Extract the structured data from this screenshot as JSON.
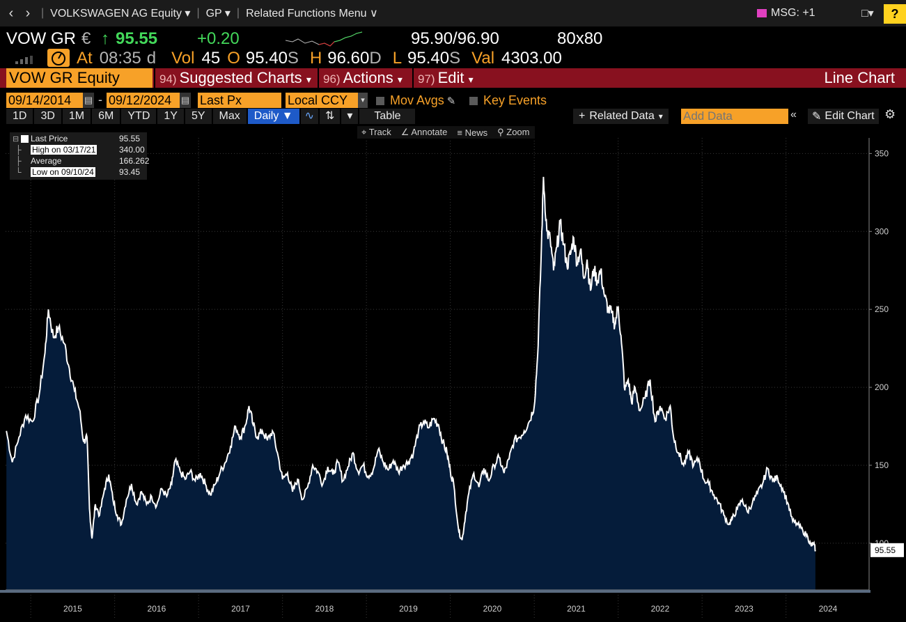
{
  "topbar": {
    "security": "VOLKSWAGEN AG Equity",
    "function": "GP",
    "related": "Related Functions Menu",
    "msg": "MSG: +1",
    "help": "?"
  },
  "quote": {
    "ticker": "VOW GR",
    "currency": "€",
    "arrow": "↑",
    "last": "95.55",
    "change": "+0.20",
    "bid_ask": "95.90/96.90",
    "size": "80x80",
    "at_label": "At",
    "time": "08:35",
    "time_suffix": "d",
    "vol_label": "Vol",
    "vol": "45",
    "open_label": "O",
    "open": "95.40",
    "open_suffix": "S",
    "high_label": "H",
    "high": "96.60",
    "high_suffix": "D",
    "low_label": "L",
    "low": "95.40",
    "low_suffix": "S",
    "val_label": "Val",
    "val": "4303.00"
  },
  "toolbar": {
    "equity": "VOW GR Equity",
    "suggested_num": "94)",
    "suggested": "Suggested Charts",
    "actions_num": "96)",
    "actions": "Actions",
    "edit_num": "97)",
    "edit": "Edit",
    "chart_type": "Line Chart"
  },
  "range": {
    "start": "09/14/2014",
    "dash": "-",
    "end": "09/12/2024",
    "field": "Last Px",
    "currency": "Local CCY",
    "mov_avgs": "Mov Avgs",
    "key_events": "Key Events"
  },
  "periods": [
    "1D",
    "3D",
    "1M",
    "6M",
    "YTD",
    "1Y",
    "5Y",
    "Max"
  ],
  "frequency": "Daily ▼",
  "table_label": "Table",
  "related_data": "Related Data",
  "add_data_placeholder": "Add Data",
  "edit_chart": "Edit Chart",
  "tools": {
    "track": "Track",
    "annotate": "Annotate",
    "news": "News",
    "zoom": "Zoom"
  },
  "legend": {
    "last_label": "Last Price",
    "last_value": "95.55",
    "high_label": "High on 03/17/21",
    "high_value": "340.00",
    "avg_label": "Average",
    "avg_value": "166.262",
    "low_label": "Low on 09/10/24",
    "low_value": "93.45"
  },
  "colors": {
    "area_fill": "#051c3a",
    "line": "#ffffff",
    "orange": "#f7a128",
    "green": "#43d85a",
    "red_bar": "#88111f"
  },
  "chart_data": {
    "type": "area",
    "x_unit": "year",
    "y_ticks": [
      100,
      150,
      200,
      250,
      300,
      350
    ],
    "x_ticks": [
      "2015",
      "2016",
      "2017",
      "2018",
      "2019",
      "2020",
      "2021",
      "2022",
      "2023",
      "2024"
    ],
    "ylim": [
      70,
      360
    ],
    "xlim": [
      2014.7,
      2024.99
    ],
    "last_value_label": "95.55",
    "series": [
      {
        "points": [
          [
            2014.71,
            172
          ],
          [
            2014.78,
            152
          ],
          [
            2014.86,
            168
          ],
          [
            2014.94,
            182
          ],
          [
            2015.02,
            178
          ],
          [
            2015.1,
            195
          ],
          [
            2015.17,
            222
          ],
          [
            2015.21,
            250
          ],
          [
            2015.27,
            232
          ],
          [
            2015.33,
            238
          ],
          [
            2015.4,
            228
          ],
          [
            2015.46,
            212
          ],
          [
            2015.52,
            198
          ],
          [
            2015.58,
            186
          ],
          [
            2015.63,
            165
          ],
          [
            2015.67,
            168
          ],
          [
            2015.7,
            122
          ],
          [
            2015.73,
            103
          ],
          [
            2015.77,
            125
          ],
          [
            2015.82,
            118
          ],
          [
            2015.88,
            135
          ],
          [
            2015.93,
            144
          ],
          [
            2015.98,
            128
          ],
          [
            2016.03,
            118
          ],
          [
            2016.08,
            112
          ],
          [
            2016.14,
            128
          ],
          [
            2016.2,
            138
          ],
          [
            2016.26,
            125
          ],
          [
            2016.32,
            133
          ],
          [
            2016.38,
            125
          ],
          [
            2016.44,
            130
          ],
          [
            2016.5,
            124
          ],
          [
            2016.56,
            135
          ],
          [
            2016.62,
            130
          ],
          [
            2016.68,
            138
          ],
          [
            2016.72,
            153
          ],
          [
            2016.78,
            146
          ],
          [
            2016.84,
            141
          ],
          [
            2016.9,
            146
          ],
          [
            2016.96,
            140
          ],
          [
            2017.02,
            145
          ],
          [
            2017.08,
            138
          ],
          [
            2017.14,
            131
          ],
          [
            2017.2,
            138
          ],
          [
            2017.26,
            146
          ],
          [
            2017.32,
            152
          ],
          [
            2017.38,
            162
          ],
          [
            2017.44,
            175
          ],
          [
            2017.5,
            168
          ],
          [
            2017.56,
            176
          ],
          [
            2017.6,
            188
          ],
          [
            2017.65,
            176
          ],
          [
            2017.7,
            168
          ],
          [
            2017.76,
            172
          ],
          [
            2017.82,
            166
          ],
          [
            2017.88,
            172
          ],
          [
            2017.94,
            158
          ],
          [
            2018.0,
            141
          ],
          [
            2018.06,
            145
          ],
          [
            2018.12,
            133
          ],
          [
            2018.18,
            141
          ],
          [
            2018.24,
            128
          ],
          [
            2018.3,
            136
          ],
          [
            2018.36,
            150
          ],
          [
            2018.42,
            146
          ],
          [
            2018.48,
            138
          ],
          [
            2018.54,
            149
          ],
          [
            2018.6,
            144
          ],
          [
            2018.66,
            152
          ],
          [
            2018.72,
            140
          ],
          [
            2018.78,
            149
          ],
          [
            2018.84,
            158
          ],
          [
            2018.9,
            146
          ],
          [
            2018.96,
            150
          ],
          [
            2019.02,
            143
          ],
          [
            2019.08,
            147
          ],
          [
            2019.14,
            160
          ],
          [
            2019.2,
            152
          ],
          [
            2019.26,
            147
          ],
          [
            2019.32,
            153
          ],
          [
            2019.38,
            146
          ],
          [
            2019.44,
            150
          ],
          [
            2019.5,
            152
          ],
          [
            2019.56,
            158
          ],
          [
            2019.62,
            172
          ],
          [
            2019.68,
            178
          ],
          [
            2019.74,
            174
          ],
          [
            2019.8,
            180
          ],
          [
            2019.86,
            176
          ],
          [
            2019.91,
            165
          ],
          [
            2019.96,
            158
          ],
          [
            2020.0,
            146
          ],
          [
            2020.04,
            138
          ],
          [
            2020.1,
            108
          ],
          [
            2020.14,
            102
          ],
          [
            2020.18,
            118
          ],
          [
            2020.22,
            132
          ],
          [
            2020.28,
            145
          ],
          [
            2020.34,
            136
          ],
          [
            2020.4,
            148
          ],
          [
            2020.46,
            140
          ],
          [
            2020.52,
            150
          ],
          [
            2020.58,
            155
          ],
          [
            2020.64,
            145
          ],
          [
            2020.7,
            154
          ],
          [
            2020.76,
            166
          ],
          [
            2020.82,
            168
          ],
          [
            2020.88,
            172
          ],
          [
            2020.94,
            178
          ],
          [
            2021.0,
            188
          ],
          [
            2021.04,
            220
          ],
          [
            2021.08,
            280
          ],
          [
            2021.11,
            335
          ],
          [
            2021.15,
            300
          ],
          [
            2021.19,
            295
          ],
          [
            2021.23,
            275
          ],
          [
            2021.27,
            290
          ],
          [
            2021.31,
            305
          ],
          [
            2021.35,
            292
          ],
          [
            2021.39,
            278
          ],
          [
            2021.43,
            285
          ],
          [
            2021.47,
            296
          ],
          [
            2021.51,
            280
          ],
          [
            2021.55,
            288
          ],
          [
            2021.59,
            270
          ],
          [
            2021.63,
            282
          ],
          [
            2021.67,
            262
          ],
          [
            2021.71,
            276
          ],
          [
            2021.75,
            268
          ],
          [
            2021.79,
            275
          ],
          [
            2021.84,
            258
          ],
          [
            2021.88,
            250
          ],
          [
            2021.92,
            248
          ],
          [
            2021.96,
            240
          ],
          [
            2022.0,
            252
          ],
          [
            2022.04,
            228
          ],
          [
            2022.08,
            198
          ],
          [
            2022.12,
            205
          ],
          [
            2022.16,
            190
          ],
          [
            2022.2,
            200
          ],
          [
            2022.26,
            185
          ],
          [
            2022.32,
            193
          ],
          [
            2022.38,
            205
          ],
          [
            2022.44,
            178
          ],
          [
            2022.5,
            188
          ],
          [
            2022.56,
            180
          ],
          [
            2022.62,
            188
          ],
          [
            2022.66,
            168
          ],
          [
            2022.72,
            158
          ],
          [
            2022.78,
            150
          ],
          [
            2022.84,
            158
          ],
          [
            2022.9,
            150
          ],
          [
            2022.96,
            154
          ],
          [
            2023.02,
            141
          ],
          [
            2023.08,
            138
          ],
          [
            2023.14,
            131
          ],
          [
            2023.2,
            126
          ],
          [
            2023.26,
            118
          ],
          [
            2023.32,
            112
          ],
          [
            2023.36,
            116
          ],
          [
            2023.42,
            122
          ],
          [
            2023.48,
            128
          ],
          [
            2023.54,
            120
          ],
          [
            2023.6,
            126
          ],
          [
            2023.66,
            132
          ],
          [
            2023.72,
            138
          ],
          [
            2023.78,
            148
          ],
          [
            2023.84,
            140
          ],
          [
            2023.9,
            142
          ],
          [
            2023.96,
            135
          ],
          [
            2024.02,
            126
          ],
          [
            2024.08,
            114
          ],
          [
            2024.14,
            112
          ],
          [
            2024.2,
            108
          ],
          [
            2024.26,
            104
          ],
          [
            2024.3,
            98
          ],
          [
            2024.33,
            100
          ],
          [
            2024.35,
            95.55
          ]
        ]
      }
    ]
  }
}
